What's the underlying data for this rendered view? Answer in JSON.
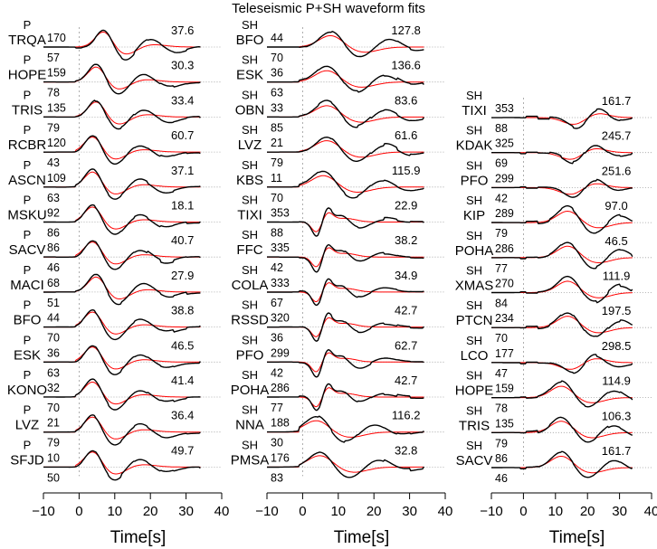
{
  "title": "Teleseismic P+SH waveform fits",
  "colors": {
    "observed": "#000000",
    "synthetic": "#ff0000"
  },
  "chart_data": [
    {
      "type": "line",
      "xlabel": "Time[s]",
      "xlim": [
        -10,
        40
      ],
      "xticks": [
        -10,
        0,
        10,
        20,
        30,
        40
      ],
      "tick_labels": [
        "−10",
        "0",
        "10",
        "20",
        "30",
        "40"
      ],
      "traces": [
        {
          "phase": "P",
          "station": "TRQA",
          "azimuth": "170",
          "distance": "57",
          "amplitude": "37.6",
          "peak": 7,
          "shape": "p"
        },
        {
          "phase": "P",
          "station": "HOPE",
          "azimuth": "159",
          "distance": "78",
          "amplitude": "30.3",
          "peak": 5,
          "shape": "p"
        },
        {
          "phase": "P",
          "station": "TRIS",
          "azimuth": "135",
          "distance": "79",
          "amplitude": "33.4",
          "peak": 5,
          "shape": "p"
        },
        {
          "phase": "P",
          "station": "RCBR",
          "azimuth": "120",
          "distance": "43",
          "amplitude": "60.7",
          "peak": 4,
          "shape": "p"
        },
        {
          "phase": "P",
          "station": "ASCN",
          "azimuth": "109",
          "distance": "63",
          "amplitude": "37.1",
          "peak": 4,
          "shape": "p"
        },
        {
          "phase": "P",
          "station": "MSKU",
          "azimuth": "92",
          "distance": "86",
          "amplitude": "18.1",
          "peak": 4,
          "shape": "p"
        },
        {
          "phase": "P",
          "station": "SACV",
          "azimuth": "86",
          "distance": "46",
          "amplitude": "40.7",
          "peak": 4,
          "shape": "p"
        },
        {
          "phase": "P",
          "station": "MACI",
          "azimuth": "68",
          "distance": "51",
          "amplitude": "27.9",
          "peak": 5,
          "shape": "p"
        },
        {
          "phase": "P",
          "station": "BFO",
          "azimuth": "44",
          "distance": "70",
          "amplitude": "38.8",
          "peak": 4,
          "shape": "p"
        },
        {
          "phase": "P",
          "station": "ESK",
          "azimuth": "36",
          "distance": "63",
          "amplitude": "46.5",
          "peak": 4,
          "shape": "p"
        },
        {
          "phase": "P",
          "station": "KONO",
          "azimuth": "32",
          "distance": "70",
          "amplitude": "41.4",
          "peak": 4,
          "shape": "p"
        },
        {
          "phase": "P",
          "station": "LVZ",
          "azimuth": "21",
          "distance": "79",
          "amplitude": "36.4",
          "peak": 4,
          "shape": "p"
        },
        {
          "phase": "P",
          "station": "SFJD",
          "azimuth": "10",
          "distance": "50",
          "amplitude": "49.7",
          "peak": 4,
          "shape": "p"
        }
      ]
    },
    {
      "type": "line",
      "xlabel": "Time[s]",
      "xlim": [
        -10,
        40
      ],
      "xticks": [
        -10,
        0,
        10,
        20,
        30,
        40
      ],
      "tick_labels": [
        "−10",
        "0",
        "10",
        "20",
        "30",
        "40"
      ],
      "traces": [
        {
          "phase": "SH",
          "station": "BFO",
          "azimuth": "44",
          "distance": "70",
          "amplitude": "127.8",
          "peak": 8,
          "shape": "s"
        },
        {
          "phase": "SH",
          "station": "ESK",
          "azimuth": "36",
          "distance": "63",
          "amplitude": "136.6",
          "peak": 7,
          "shape": "s"
        },
        {
          "phase": "SH",
          "station": "OBN",
          "azimuth": "33",
          "distance": "85",
          "amplitude": "83.6",
          "peak": 7,
          "shape": "s"
        },
        {
          "phase": "SH",
          "station": "LVZ",
          "azimuth": "21",
          "distance": "79",
          "amplitude": "61.6",
          "peak": 7,
          "shape": "s"
        },
        {
          "phase": "SH",
          "station": "KBS",
          "azimuth": "11",
          "distance": "70",
          "amplitude": "115.9",
          "peak": 6,
          "shape": "s"
        },
        {
          "phase": "SH",
          "station": "TIXI",
          "azimuth": "353",
          "distance": "88",
          "amplitude": "22.9",
          "peak": 5,
          "shape": "w"
        },
        {
          "phase": "SH",
          "station": "FFC",
          "azimuth": "335",
          "distance": "42",
          "amplitude": "38.2",
          "peak": 5,
          "shape": "w"
        },
        {
          "phase": "SH",
          "station": "COLA",
          "azimuth": "333",
          "distance": "67",
          "amplitude": "34.9",
          "peak": 5,
          "shape": "w"
        },
        {
          "phase": "SH",
          "station": "RSSD",
          "azimuth": "320",
          "distance": "36",
          "amplitude": "42.7",
          "peak": 5,
          "shape": "w"
        },
        {
          "phase": "SH",
          "station": "PFO",
          "azimuth": "299",
          "distance": "42",
          "amplitude": "62.7",
          "peak": 5,
          "shape": "w"
        },
        {
          "phase": "SH",
          "station": "POHA",
          "azimuth": "286",
          "distance": "77",
          "amplitude": "42.7",
          "peak": 5,
          "shape": "w"
        },
        {
          "phase": "SH",
          "station": "NNA",
          "azimuth": "188",
          "distance": "30",
          "amplitude": "116.2",
          "peak": 4,
          "shape": "s"
        },
        {
          "phase": "SH",
          "station": "PMSA",
          "azimuth": "176",
          "distance": "83",
          "amplitude": "32.8",
          "peak": 5,
          "shape": "s"
        }
      ]
    },
    {
      "type": "line",
      "xlabel": "Time[s]",
      "xlim": [
        -10,
        40
      ],
      "xticks": [
        -10,
        0,
        10,
        20,
        30,
        40
      ],
      "tick_labels": [
        "−10",
        "0",
        "10",
        "20",
        "30",
        "40"
      ],
      "traces": [
        {
          "phase": "SH",
          "station": "TIXI",
          "azimuth": "353",
          "distance": "88",
          "amplitude": "161.7",
          "peak": 13,
          "shape": "n"
        },
        {
          "phase": "SH",
          "station": "KDAK",
          "azimuth": "325",
          "distance": "69",
          "amplitude": "245.7",
          "peak": 12,
          "shape": "n"
        },
        {
          "phase": "SH",
          "station": "PFO",
          "azimuth": "299",
          "distance": "42",
          "amplitude": "251.6",
          "peak": 12,
          "shape": "n"
        },
        {
          "phase": "SH",
          "station": "KIP",
          "azimuth": "289",
          "distance": "79",
          "amplitude": "97.0",
          "peak": 14,
          "shape": "s"
        },
        {
          "phase": "SH",
          "station": "POHA",
          "azimuth": "286",
          "distance": "77",
          "amplitude": "46.5",
          "peak": 14,
          "shape": "s"
        },
        {
          "phase": "SH",
          "station": "XMAS",
          "azimuth": "270",
          "distance": "84",
          "amplitude": "111.9",
          "peak": 14,
          "shape": "s"
        },
        {
          "phase": "SH",
          "station": "PTCN",
          "azimuth": "234",
          "distance": "70",
          "amplitude": "197.5",
          "peak": 14,
          "shape": "s"
        },
        {
          "phase": "SH",
          "station": "LCO",
          "azimuth": "177",
          "distance": "47",
          "amplitude": "298.5",
          "peak": 12,
          "shape": "n"
        },
        {
          "phase": "SH",
          "station": "HOPE",
          "azimuth": "159",
          "distance": "78",
          "amplitude": "114.9",
          "peak": 12,
          "shape": "s"
        },
        {
          "phase": "SH",
          "station": "TRIS",
          "azimuth": "135",
          "distance": "79",
          "amplitude": "106.3",
          "peak": 12,
          "shape": "s"
        },
        {
          "phase": "SH",
          "station": "SACV",
          "azimuth": "86",
          "distance": "46",
          "amplitude": "161.7",
          "peak": 12,
          "shape": "s"
        }
      ]
    }
  ]
}
